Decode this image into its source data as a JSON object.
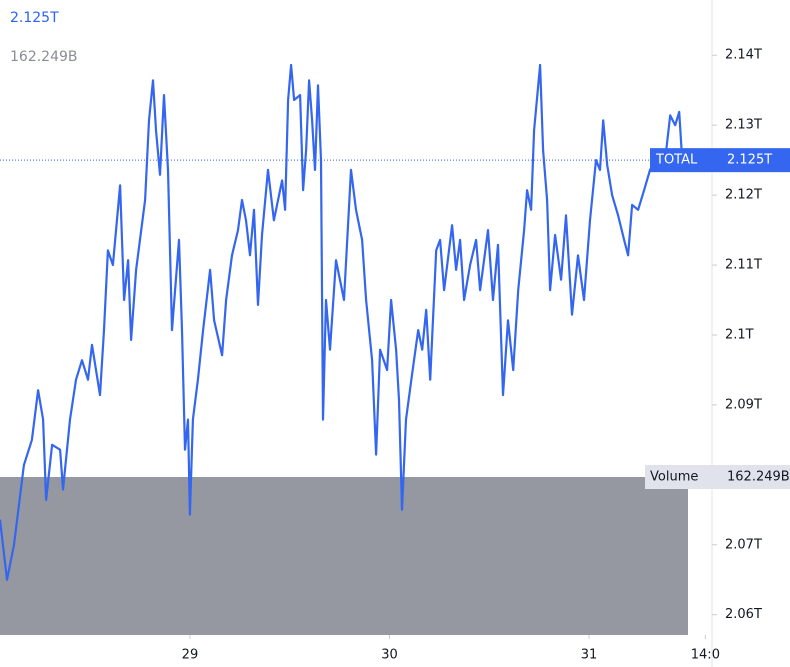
{
  "chart_data": {
    "type": "line",
    "current_value": 2.125,
    "current_label": "2.125T",
    "volume": {
      "name": "Volume",
      "value": 162.249,
      "label": "162.249B",
      "color": "#9598a1"
    },
    "xlim": [
      28.048,
      31.6165
    ],
    "xticks": [
      29,
      30,
      31,
      {
        "value": 31.5833,
        "label": "14:0"
      }
    ],
    "ylim": [
      2.0571,
      2.1479
    ],
    "yticks": [
      {
        "value": 2.06,
        "label": "2.06T"
      },
      {
        "value": 2.07,
        "label": "2.07T"
      },
      {
        "value": 2.09,
        "label": "2.09T"
      },
      {
        "value": 2.1,
        "label": "2.1T"
      },
      {
        "value": 2.11,
        "label": "2.11T"
      },
      {
        "value": 2.12,
        "label": "2.12T"
      },
      {
        "value": 2.13,
        "label": "2.13T"
      },
      {
        "value": 2.14,
        "label": "2.14T"
      }
    ],
    "series": [
      {
        "name": "TOTAL",
        "color": "#3466f0",
        "x": [
          28.048,
          28.083,
          28.118,
          28.168,
          28.208,
          28.239,
          28.264,
          28.279,
          28.309,
          28.349,
          28.364,
          28.399,
          28.429,
          28.459,
          28.489,
          28.509,
          28.549,
          28.569,
          28.589,
          28.614,
          28.65,
          28.67,
          28.69,
          28.705,
          28.73,
          28.775,
          28.795,
          28.815,
          28.83,
          28.85,
          28.87,
          28.89,
          28.91,
          28.945,
          28.96,
          28.975,
          28.99,
          29.0,
          29.015,
          29.04,
          29.066,
          29.101,
          29.121,
          29.161,
          29.181,
          29.211,
          29.241,
          29.261,
          29.281,
          29.301,
          29.321,
          29.341,
          29.361,
          29.391,
          29.421,
          29.462,
          29.477,
          29.492,
          29.507,
          29.522,
          29.552,
          29.567,
          29.582,
          29.597,
          29.612,
          29.627,
          29.642,
          29.657,
          29.667,
          29.682,
          29.702,
          29.732,
          29.772,
          29.807,
          29.832,
          29.863,
          29.883,
          29.913,
          29.933,
          29.953,
          29.988,
          30.008,
          30.033,
          30.048,
          30.063,
          30.083,
          30.113,
          30.144,
          30.164,
          30.184,
          30.204,
          30.234,
          30.254,
          30.274,
          30.314,
          30.334,
          30.354,
          30.374,
          30.404,
          30.434,
          30.454,
          30.494,
          30.519,
          30.544,
          30.569,
          30.594,
          30.62,
          30.645,
          30.675,
          30.69,
          30.71,
          30.725,
          30.755,
          30.77,
          30.79,
          30.805,
          30.83,
          30.86,
          30.885,
          30.915,
          30.945,
          30.975,
          31.005,
          31.035,
          31.055,
          31.071,
          31.091,
          31.116,
          31.146,
          31.176,
          31.196,
          31.216,
          31.246,
          31.276,
          31.306,
          31.337,
          31.367,
          31.387,
          31.407,
          31.432,
          31.452,
          31.467,
          31.482
        ],
        "values": [
          2.0736,
          2.065,
          2.07,
          2.0814,
          2.085,
          2.0921,
          2.0879,
          2.0764,
          2.0843,
          2.0836,
          2.0779,
          2.0879,
          2.0936,
          2.0964,
          2.0936,
          2.0986,
          2.0914,
          2.1007,
          2.1121,
          2.11,
          2.1214,
          2.105,
          2.1107,
          2.0993,
          2.1093,
          2.1193,
          2.1307,
          2.1364,
          2.1293,
          2.1229,
          2.1343,
          2.1236,
          2.1007,
          2.1136,
          2.1007,
          2.0836,
          2.0879,
          2.0743,
          2.0879,
          2.0936,
          2.1007,
          2.1093,
          2.1021,
          2.0971,
          2.105,
          2.1114,
          2.115,
          2.1193,
          2.1164,
          2.1114,
          2.1179,
          2.1043,
          2.1143,
          2.1236,
          2.1164,
          2.1221,
          2.1179,
          2.1336,
          2.1386,
          2.1336,
          2.1343,
          2.1207,
          2.1264,
          2.1364,
          2.1307,
          2.1236,
          2.1357,
          2.125,
          2.0879,
          2.105,
          2.0979,
          2.1107,
          2.105,
          2.1236,
          2.1179,
          2.1136,
          2.105,
          2.0964,
          2.0829,
          2.0979,
          2.095,
          2.105,
          2.0979,
          2.0907,
          2.075,
          2.0879,
          2.0943,
          2.1007,
          2.0979,
          2.1036,
          2.0936,
          2.1121,
          2.1136,
          2.1064,
          2.1157,
          2.1093,
          2.1136,
          2.105,
          2.11,
          2.1136,
          2.1064,
          2.115,
          2.105,
          2.1129,
          2.0914,
          2.1021,
          2.095,
          2.1064,
          2.115,
          2.1207,
          2.1179,
          2.1293,
          2.1386,
          2.1264,
          2.1193,
          2.1064,
          2.1143,
          2.1079,
          2.1171,
          2.1029,
          2.1114,
          2.105,
          2.1164,
          2.125,
          2.1236,
          2.1307,
          2.1243,
          2.12,
          2.1171,
          2.1136,
          2.1114,
          2.1186,
          2.1179,
          2.1207,
          2.1236,
          2.125,
          2.1257,
          2.1264,
          2.1314,
          2.13,
          2.1319,
          2.125,
          2.1243
        ]
      }
    ]
  }
}
